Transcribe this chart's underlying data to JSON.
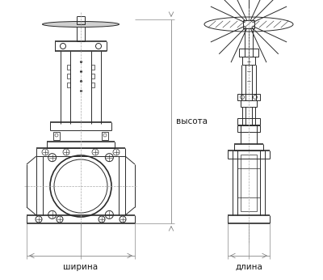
{
  "bg_color": "#ffffff",
  "line_color": "#2a2a2a",
  "line_width": 0.7,
  "thick_line": 1.2,
  "dim_color": "#444444",
  "text_color": "#1a1a1a",
  "label_ширина": "ширина",
  "label_длина": "длина",
  "label_высота": "высота",
  "figsize": [
    4.0,
    3.46
  ],
  "dpi": 100
}
